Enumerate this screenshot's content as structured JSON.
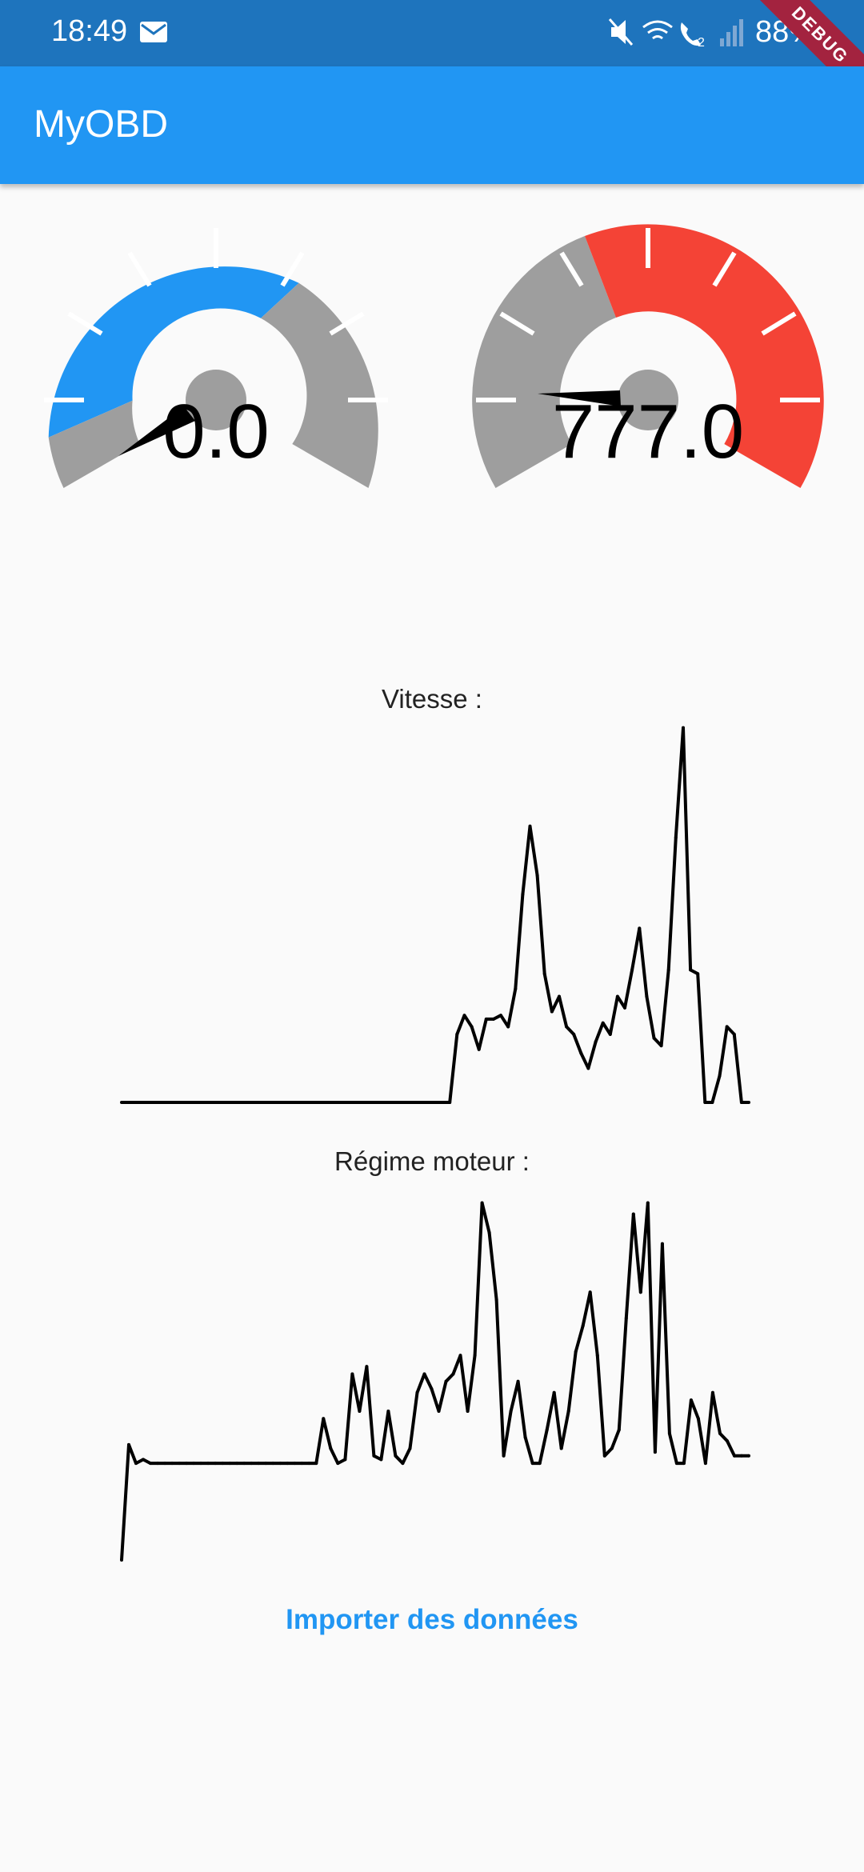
{
  "status_bar": {
    "time": "18:49",
    "battery": "88%"
  },
  "debug_banner": "DEBUG",
  "app": {
    "title": "MyOBD"
  },
  "gauges": [
    {
      "name": "speed",
      "value_text": "0.0",
      "active_color": "#2196f3",
      "inactive_color": "#9e9e9e"
    },
    {
      "name": "rpm",
      "value_text": "777.0",
      "active_color": "#f44336",
      "inactive_color": "#9e9e9e"
    }
  ],
  "charts": {
    "speed_label": "Vitesse :",
    "rpm_label": "Régime moteur :"
  },
  "chart_data": [
    {
      "type": "line",
      "title": "Vitesse :",
      "xlabel": "",
      "ylabel": "",
      "grid": false,
      "ylim": [
        0,
        100
      ],
      "series": [
        {
          "values": [
            0,
            0,
            0,
            0,
            0,
            0,
            0,
            0,
            0,
            0,
            0,
            0,
            0,
            0,
            0,
            0,
            0,
            0,
            0,
            0,
            0,
            0,
            0,
            0,
            0,
            0,
            0,
            0,
            0,
            0,
            0,
            0,
            0,
            0,
            0,
            0,
            0,
            0,
            0,
            0,
            0,
            0,
            0,
            0,
            0,
            0,
            18,
            23,
            20,
            14,
            22,
            22,
            23,
            20,
            30,
            55,
            73,
            60,
            34,
            24,
            28,
            20,
            18,
            13,
            9,
            16,
            21,
            18,
            28,
            25,
            35,
            46,
            28,
            17,
            15,
            35,
            70,
            99,
            35,
            34,
            0,
            0,
            7,
            20,
            18,
            0,
            0
          ]
        }
      ]
    },
    {
      "type": "line",
      "title": "Régime moteur :",
      "xlabel": "",
      "ylabel": "",
      "grid": false,
      "ylim": [
        0,
        100
      ],
      "series": [
        {
          "values": [
            0,
            31,
            26,
            27,
            26,
            26,
            26,
            26,
            26,
            26,
            26,
            26,
            26,
            26,
            26,
            26,
            26,
            26,
            26,
            26,
            26,
            26,
            26,
            26,
            26,
            26,
            26,
            26,
            38,
            30,
            26,
            27,
            50,
            40,
            52,
            28,
            27,
            40,
            28,
            26,
            30,
            45,
            50,
            46,
            40,
            48,
            50,
            55,
            40,
            55,
            96,
            88,
            70,
            28,
            40,
            48,
            33,
            26,
            26,
            35,
            45,
            30,
            40,
            56,
            63,
            72,
            55,
            28,
            30,
            35,
            65,
            93,
            72,
            96,
            29,
            85,
            34,
            26,
            26,
            43,
            38,
            26,
            45,
            34,
            32,
            28,
            28,
            28
          ]
        }
      ]
    }
  ],
  "actions": {
    "import_label": "Importer des données"
  }
}
